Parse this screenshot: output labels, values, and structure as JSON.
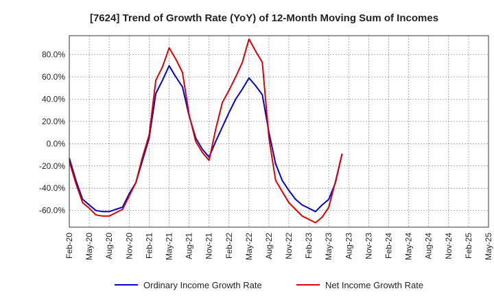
{
  "chart_data": {
    "type": "line",
    "title": "[7624]  Trend of Growth Rate (YoY) of 12-Month Moving Sum of Incomes",
    "xlabel": "",
    "ylabel": "",
    "ylim": [
      -75,
      97
    ],
    "y_ticks": [
      -60,
      -40,
      -20,
      0,
      20,
      40,
      60,
      80
    ],
    "y_tick_labels": [
      "-60.0%",
      "-40.0%",
      "-20.0%",
      "0.0%",
      "20.0%",
      "40.0%",
      "60.0%",
      "80.0%"
    ],
    "x_tick_labels": [
      "Feb-20",
      "May-20",
      "Aug-20",
      "Nov-20",
      "Feb-21",
      "May-21",
      "Aug-21",
      "Nov-21",
      "Feb-22",
      "May-22",
      "Aug-22",
      "Nov-22",
      "Feb-23",
      "May-23",
      "Aug-23",
      "Nov-23",
      "Feb-24",
      "May-24",
      "Aug-24",
      "Nov-24",
      "Feb-25",
      "May-25"
    ],
    "grid": true,
    "legend_position": "bottom",
    "series": [
      {
        "name": "Ordinary Income Growth Rate",
        "color": "#0000cc",
        "values": [
          -13,
          -33,
          -50,
          -55,
          -60,
          -61,
          -61,
          -59,
          -57,
          -45,
          -35,
          -15,
          5,
          45,
          57,
          70,
          60,
          51,
          25,
          5,
          -5,
          -12,
          2,
          15,
          28,
          40,
          49,
          59,
          52,
          44,
          10,
          -18,
          -33,
          -42,
          -50,
          -55,
          -58,
          -61,
          -55,
          -50,
          -35,
          -9
        ]
      },
      {
        "name": "Net Income Growth Rate",
        "color": "#dd0000",
        "values": [
          -16,
          -36,
          -53,
          -58,
          -64,
          -65,
          -65,
          -62,
          -59,
          -47,
          -35,
          -12,
          8,
          57,
          69,
          86,
          76,
          64,
          26,
          2,
          -8,
          -15,
          13,
          37,
          48,
          60,
          73,
          94,
          83,
          73,
          5,
          -33,
          -43,
          -53,
          -59,
          -65,
          -68,
          -71,
          -66,
          -57,
          -34,
          -9
        ]
      }
    ]
  }
}
